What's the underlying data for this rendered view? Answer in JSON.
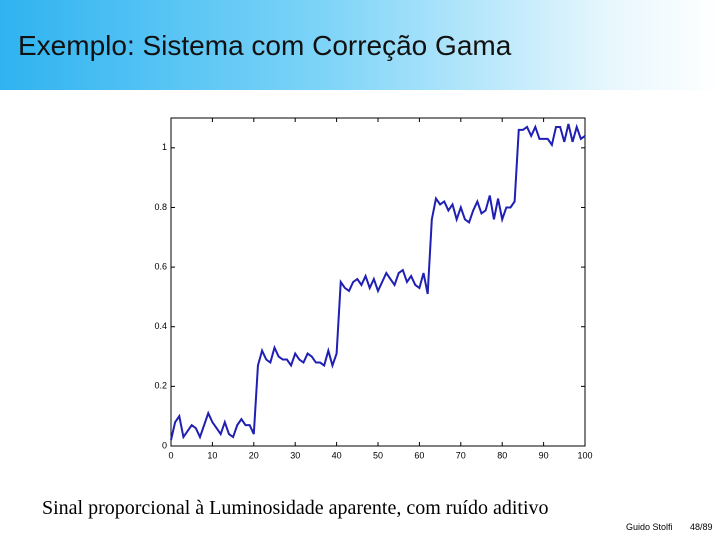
{
  "slide": {
    "title": "Exemplo: Sistema com Correção Gama",
    "caption": "Sinal proporcional à Luminosidade aparente, com ruído aditivo",
    "author": "Guido Stolfi",
    "page": "48/89"
  },
  "chart_data": {
    "type": "line",
    "x": [
      0,
      1,
      2,
      3,
      4,
      5,
      6,
      7,
      8,
      9,
      10,
      11,
      12,
      13,
      14,
      15,
      16,
      17,
      18,
      19,
      20,
      21,
      22,
      23,
      24,
      25,
      26,
      27,
      28,
      29,
      30,
      31,
      32,
      33,
      34,
      35,
      36,
      37,
      38,
      39,
      40,
      41,
      42,
      43,
      44,
      45,
      46,
      47,
      48,
      49,
      50,
      51,
      52,
      53,
      54,
      55,
      56,
      57,
      58,
      59,
      60,
      61,
      62,
      63,
      64,
      65,
      66,
      67,
      68,
      69,
      70,
      71,
      72,
      73,
      74,
      75,
      76,
      77,
      78,
      79,
      80,
      81,
      82,
      83,
      84,
      85,
      86,
      87,
      88,
      89,
      90,
      91,
      92,
      93,
      94,
      95,
      96,
      97,
      98,
      99,
      100
    ],
    "series": [
      {
        "color": "#1f1fb4",
        "values": [
          0.02,
          0.08,
          0.1,
          0.03,
          0.05,
          0.07,
          0.06,
          0.03,
          0.07,
          0.11,
          0.08,
          0.06,
          0.04,
          0.08,
          0.04,
          0.03,
          0.07,
          0.09,
          0.07,
          0.07,
          0.04,
          0.27,
          0.32,
          0.29,
          0.28,
          0.33,
          0.3,
          0.29,
          0.29,
          0.27,
          0.31,
          0.29,
          0.28,
          0.31,
          0.3,
          0.28,
          0.28,
          0.27,
          0.32,
          0.27,
          0.31,
          0.55,
          0.53,
          0.52,
          0.55,
          0.56,
          0.54,
          0.57,
          0.53,
          0.56,
          0.52,
          0.55,
          0.58,
          0.56,
          0.54,
          0.58,
          0.59,
          0.55,
          0.57,
          0.54,
          0.53,
          0.58,
          0.51,
          0.76,
          0.83,
          0.81,
          0.82,
          0.79,
          0.81,
          0.76,
          0.8,
          0.76,
          0.75,
          0.79,
          0.82,
          0.78,
          0.79,
          0.84,
          0.76,
          0.83,
          0.76,
          0.8,
          0.8,
          0.82,
          1.06,
          1.06,
          1.07,
          1.04,
          1.07,
          1.03,
          1.03,
          1.03,
          1.01,
          1.07,
          1.07,
          1.02,
          1.08,
          1.02,
          1.07,
          1.03,
          1.04
        ]
      }
    ],
    "xlim": [
      0,
      100
    ],
    "xticks": [
      0,
      10,
      20,
      30,
      40,
      50,
      60,
      70,
      80,
      90,
      100
    ],
    "ylim": [
      0,
      1.1
    ],
    "yticks": [
      0,
      0.2,
      0.4,
      0.6,
      0.8,
      1
    ]
  }
}
